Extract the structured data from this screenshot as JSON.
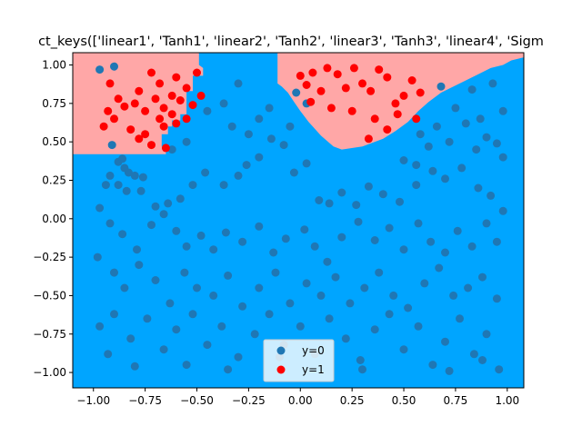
{
  "chart_data": {
    "type": "scatter",
    "title": "ct_keys(['linear1', 'Tanh1', 'linear2', 'Tanh2', 'linear3', 'Tanh3', 'linear4', 'Sigm",
    "xlabel": "",
    "ylabel": "",
    "xlim": [
      -1.1,
      1.08
    ],
    "ylim": [
      -1.1,
      1.08
    ],
    "xticks": [
      -1.0,
      -0.75,
      -0.5,
      -0.25,
      0.0,
      0.25,
      0.5,
      0.75,
      1.0
    ],
    "xtick_labels": [
      "−1.00",
      "−0.75",
      "−0.50",
      "−0.25",
      "0.00",
      "0.25",
      "0.50",
      "0.75",
      "1.00"
    ],
    "yticks": [
      -1.0,
      -0.75,
      -0.5,
      -0.25,
      0.0,
      0.25,
      0.5,
      0.75,
      1.0
    ],
    "ytick_labels": [
      "−1.00",
      "−0.75",
      "−0.50",
      "−0.25",
      "0.00",
      "0.25",
      "0.50",
      "0.75",
      "1.00"
    ],
    "grid": false,
    "legend_position": "lower-center",
    "background": {
      "color": "#00a5ff",
      "regions": [
        {
          "class": "y=1",
          "color": "#ffa7a7",
          "polygon": [
            [
              -1.1,
              1.08
            ],
            [
              -0.49,
              1.08
            ],
            [
              -0.49,
              1.0
            ],
            [
              -0.47,
              0.98
            ],
            [
              -0.47,
              0.93
            ],
            [
              -0.52,
              0.93
            ],
            [
              -0.52,
              0.83
            ],
            [
              -0.55,
              0.83
            ],
            [
              -0.55,
              0.68
            ],
            [
              -0.58,
              0.68
            ],
            [
              -0.58,
              0.64
            ],
            [
              -0.62,
              0.64
            ],
            [
              -0.62,
              0.6
            ],
            [
              -0.64,
              0.6
            ],
            [
              -0.64,
              0.55
            ],
            [
              -0.67,
              0.55
            ],
            [
              -0.67,
              0.47
            ],
            [
              -0.65,
              0.45
            ],
            [
              -0.65,
              0.42
            ],
            [
              -1.1,
              0.42
            ]
          ]
        },
        {
          "class": "y=1",
          "color": "#ffa7a7",
          "polygon": [
            [
              -0.11,
              1.08
            ],
            [
              1.08,
              1.08
            ],
            [
              1.08,
              1.05
            ],
            [
              1.02,
              1.03
            ],
            [
              0.98,
              1.0
            ],
            [
              0.92,
              0.98
            ],
            [
              0.86,
              0.94
            ],
            [
              0.8,
              0.9
            ],
            [
              0.74,
              0.86
            ],
            [
              0.68,
              0.82
            ],
            [
              0.62,
              0.76
            ],
            [
              0.57,
              0.7
            ],
            [
              0.52,
              0.63
            ],
            [
              0.46,
              0.57
            ],
            [
              0.4,
              0.52
            ],
            [
              0.3,
              0.47
            ],
            [
              0.2,
              0.45
            ],
            [
              0.16,
              0.47
            ],
            [
              0.1,
              0.54
            ],
            [
              0.04,
              0.63
            ],
            [
              0.0,
              0.7
            ],
            [
              -0.03,
              0.76
            ],
            [
              -0.06,
              0.82
            ],
            [
              -0.09,
              0.86
            ],
            [
              -0.11,
              0.88
            ]
          ]
        }
      ]
    },
    "series": [
      {
        "name": "y=0",
        "color": "#1f77b4",
        "points": [
          [
            -0.97,
            0.97
          ],
          [
            -0.9,
            0.99
          ],
          [
            -0.91,
            0.48
          ],
          [
            -0.88,
            0.37
          ],
          [
            -0.86,
            0.39
          ],
          [
            -0.85,
            0.33
          ],
          [
            -0.83,
            0.3
          ],
          [
            -0.8,
            0.28
          ],
          [
            -0.92,
            0.28
          ],
          [
            -0.94,
            0.22
          ],
          [
            -0.88,
            0.22
          ],
          [
            -0.84,
            0.18
          ],
          [
            -0.76,
            0.27
          ],
          [
            -0.77,
            0.18
          ],
          [
            -0.7,
            0.08
          ],
          [
            -0.64,
            0.1
          ],
          [
            -0.58,
            0.13
          ],
          [
            -0.52,
            0.22
          ],
          [
            -0.46,
            0.3
          ],
          [
            -0.37,
            0.22
          ],
          [
            -0.3,
            0.28
          ],
          [
            -0.26,
            0.35
          ],
          [
            -0.2,
            0.4
          ],
          [
            -0.14,
            0.52
          ],
          [
            -0.08,
            0.48
          ],
          [
            -0.03,
            0.3
          ],
          [
            0.03,
            0.36
          ],
          [
            0.09,
            0.12
          ],
          [
            0.14,
            0.1
          ],
          [
            0.2,
            0.17
          ],
          [
            0.27,
            0.09
          ],
          [
            0.33,
            0.21
          ],
          [
            0.4,
            0.16
          ],
          [
            0.48,
            0.11
          ],
          [
            0.56,
            0.22
          ],
          [
            0.64,
            0.31
          ],
          [
            0.7,
            0.26
          ],
          [
            0.78,
            0.33
          ],
          [
            0.86,
            0.2
          ],
          [
            0.92,
            0.15
          ],
          [
            0.98,
            0.4
          ],
          [
            0.95,
            0.49
          ],
          [
            0.9,
            0.53
          ],
          [
            0.87,
            0.65
          ],
          [
            0.83,
            0.84
          ],
          [
            0.93,
            0.88
          ],
          [
            0.75,
            0.72
          ],
          [
            0.68,
            0.86
          ],
          [
            0.62,
            0.47
          ],
          [
            0.56,
            0.35
          ],
          [
            0.5,
            0.38
          ],
          [
            -0.97,
            0.07
          ],
          [
            -0.92,
            -0.03
          ],
          [
            -0.86,
            -0.1
          ],
          [
            -0.79,
            -0.2
          ],
          [
            -0.72,
            -0.04
          ],
          [
            -0.66,
            0.03
          ],
          [
            -0.6,
            -0.08
          ],
          [
            -0.55,
            -0.18
          ],
          [
            -0.48,
            -0.11
          ],
          [
            -0.42,
            -0.2
          ],
          [
            -0.36,
            -0.09
          ],
          [
            -0.28,
            -0.15
          ],
          [
            -0.2,
            -0.05
          ],
          [
            -0.13,
            -0.22
          ],
          [
            -0.07,
            -0.13
          ],
          [
            0.02,
            -0.07
          ],
          [
            0.07,
            -0.18
          ],
          [
            0.13,
            -0.28
          ],
          [
            0.2,
            -0.12
          ],
          [
            0.28,
            -0.02
          ],
          [
            0.36,
            -0.14
          ],
          [
            0.43,
            -0.06
          ],
          [
            0.5,
            -0.2
          ],
          [
            0.57,
            -0.03
          ],
          [
            0.63,
            -0.15
          ],
          [
            0.7,
            -0.22
          ],
          [
            0.76,
            -0.08
          ],
          [
            0.83,
            -0.18
          ],
          [
            0.9,
            -0.03
          ],
          [
            0.95,
            -0.15
          ],
          [
            0.98,
            0.05
          ],
          [
            -0.98,
            -0.25
          ],
          [
            -0.9,
            -0.35
          ],
          [
            -0.85,
            -0.45
          ],
          [
            -0.78,
            -0.3
          ],
          [
            -0.7,
            -0.4
          ],
          [
            -0.63,
            -0.55
          ],
          [
            -0.56,
            -0.35
          ],
          [
            -0.5,
            -0.45
          ],
          [
            -0.42,
            -0.5
          ],
          [
            -0.35,
            -0.37
          ],
          [
            -0.28,
            -0.57
          ],
          [
            -0.2,
            -0.45
          ],
          [
            -0.12,
            -0.35
          ],
          [
            -0.05,
            -0.55
          ],
          [
            0.03,
            -0.42
          ],
          [
            0.1,
            -0.5
          ],
          [
            0.17,
            -0.38
          ],
          [
            0.24,
            -0.55
          ],
          [
            0.31,
            -0.45
          ],
          [
            0.38,
            -0.35
          ],
          [
            0.45,
            -0.5
          ],
          [
            0.52,
            -0.58
          ],
          [
            0.6,
            -0.42
          ],
          [
            0.67,
            -0.32
          ],
          [
            0.74,
            -0.5
          ],
          [
            0.81,
            -0.45
          ],
          [
            0.88,
            -0.38
          ],
          [
            0.95,
            -0.52
          ],
          [
            -0.97,
            -0.7
          ],
          [
            -0.9,
            -0.62
          ],
          [
            -0.82,
            -0.78
          ],
          [
            -0.74,
            -0.65
          ],
          [
            -0.66,
            -0.85
          ],
          [
            -0.6,
            -0.72
          ],
          [
            -0.52,
            -0.62
          ],
          [
            -0.45,
            -0.82
          ],
          [
            -0.38,
            -0.7
          ],
          [
            -0.3,
            -0.9
          ],
          [
            -0.22,
            -0.75
          ],
          [
            -0.15,
            -0.62
          ],
          [
            -0.08,
            -0.82
          ],
          [
            0.0,
            -0.7
          ],
          [
            0.07,
            -0.88
          ],
          [
            0.14,
            -0.65
          ],
          [
            0.22,
            -0.78
          ],
          [
            0.29,
            -0.92
          ],
          [
            0.36,
            -0.72
          ],
          [
            0.43,
            -0.62
          ],
          [
            0.5,
            -0.85
          ],
          [
            0.57,
            -0.7
          ],
          [
            0.64,
            -0.95
          ],
          [
            0.7,
            -0.8
          ],
          [
            0.77,
            -0.65
          ],
          [
            0.84,
            -0.88
          ],
          [
            0.9,
            -0.75
          ],
          [
            0.96,
            -0.98
          ],
          [
            -0.93,
            -0.88
          ],
          [
            -0.8,
            -0.96
          ],
          [
            -0.55,
            -0.95
          ],
          [
            -0.35,
            -0.98
          ],
          [
            -0.1,
            -0.9
          ],
          [
            0.3,
            -0.98
          ],
          [
            0.72,
            -0.99
          ],
          [
            0.88,
            -0.92
          ],
          [
            -0.45,
            0.7
          ],
          [
            -0.3,
            0.88
          ],
          [
            -0.37,
            0.75
          ],
          [
            -0.2,
            0.65
          ],
          [
            -0.15,
            0.72
          ],
          [
            -0.05,
            0.6
          ],
          [
            -0.02,
            0.82
          ],
          [
            0.03,
            0.75
          ],
          [
            -0.62,
            0.45
          ],
          [
            -0.55,
            0.5
          ],
          [
            -0.25,
            0.55
          ],
          [
            -0.33,
            0.6
          ],
          [
            0.58,
            0.55
          ],
          [
            0.66,
            0.6
          ],
          [
            0.72,
            0.5
          ],
          [
            0.8,
            0.62
          ],
          [
            0.85,
            0.45
          ],
          [
            0.98,
            0.7
          ]
        ]
      },
      {
        "name": "y=1",
        "color": "#ff0000",
        "points": [
          [
            -0.95,
            0.6
          ],
          [
            -0.92,
            0.88
          ],
          [
            -0.9,
            0.65
          ],
          [
            -0.85,
            0.73
          ],
          [
            -0.82,
            0.58
          ],
          [
            -0.78,
            0.83
          ],
          [
            -0.75,
            0.7
          ],
          [
            -0.72,
            0.95
          ],
          [
            -0.7,
            0.78
          ],
          [
            -0.68,
            0.88
          ],
          [
            -0.66,
            0.72
          ],
          [
            -0.62,
            0.8
          ],
          [
            -0.6,
            0.92
          ],
          [
            -0.58,
            0.77
          ],
          [
            -0.55,
            0.85
          ],
          [
            -0.52,
            0.74
          ],
          [
            -0.5,
            0.95
          ],
          [
            -0.48,
            0.8
          ],
          [
            -0.78,
            0.52
          ],
          [
            -0.72,
            0.48
          ],
          [
            -0.66,
            0.6
          ],
          [
            -0.6,
            0.62
          ],
          [
            -0.55,
            0.65
          ],
          [
            -0.62,
            0.68
          ],
          [
            -0.68,
            0.65
          ],
          [
            -0.75,
            0.55
          ],
          [
            -0.8,
            0.75
          ],
          [
            -0.88,
            0.78
          ],
          [
            -0.93,
            0.7
          ],
          [
            -0.65,
            0.46
          ],
          [
            0.0,
            0.93
          ],
          [
            0.03,
            0.87
          ],
          [
            0.06,
            0.95
          ],
          [
            0.1,
            0.83
          ],
          [
            0.13,
            0.98
          ],
          [
            0.18,
            0.94
          ],
          [
            0.22,
            0.85
          ],
          [
            0.26,
            0.98
          ],
          [
            0.3,
            0.88
          ],
          [
            0.34,
            0.83
          ],
          [
            0.38,
            0.97
          ],
          [
            0.42,
            0.92
          ],
          [
            0.46,
            0.75
          ],
          [
            0.5,
            0.8
          ],
          [
            0.54,
            0.9
          ],
          [
            0.58,
            0.82
          ],
          [
            0.36,
            0.65
          ],
          [
            0.42,
            0.58
          ],
          [
            0.47,
            0.68
          ],
          [
            0.33,
            0.52
          ],
          [
            0.56,
            0.65
          ],
          [
            0.05,
            0.76
          ],
          [
            0.15,
            0.72
          ],
          [
            0.25,
            0.7
          ]
        ]
      }
    ]
  }
}
